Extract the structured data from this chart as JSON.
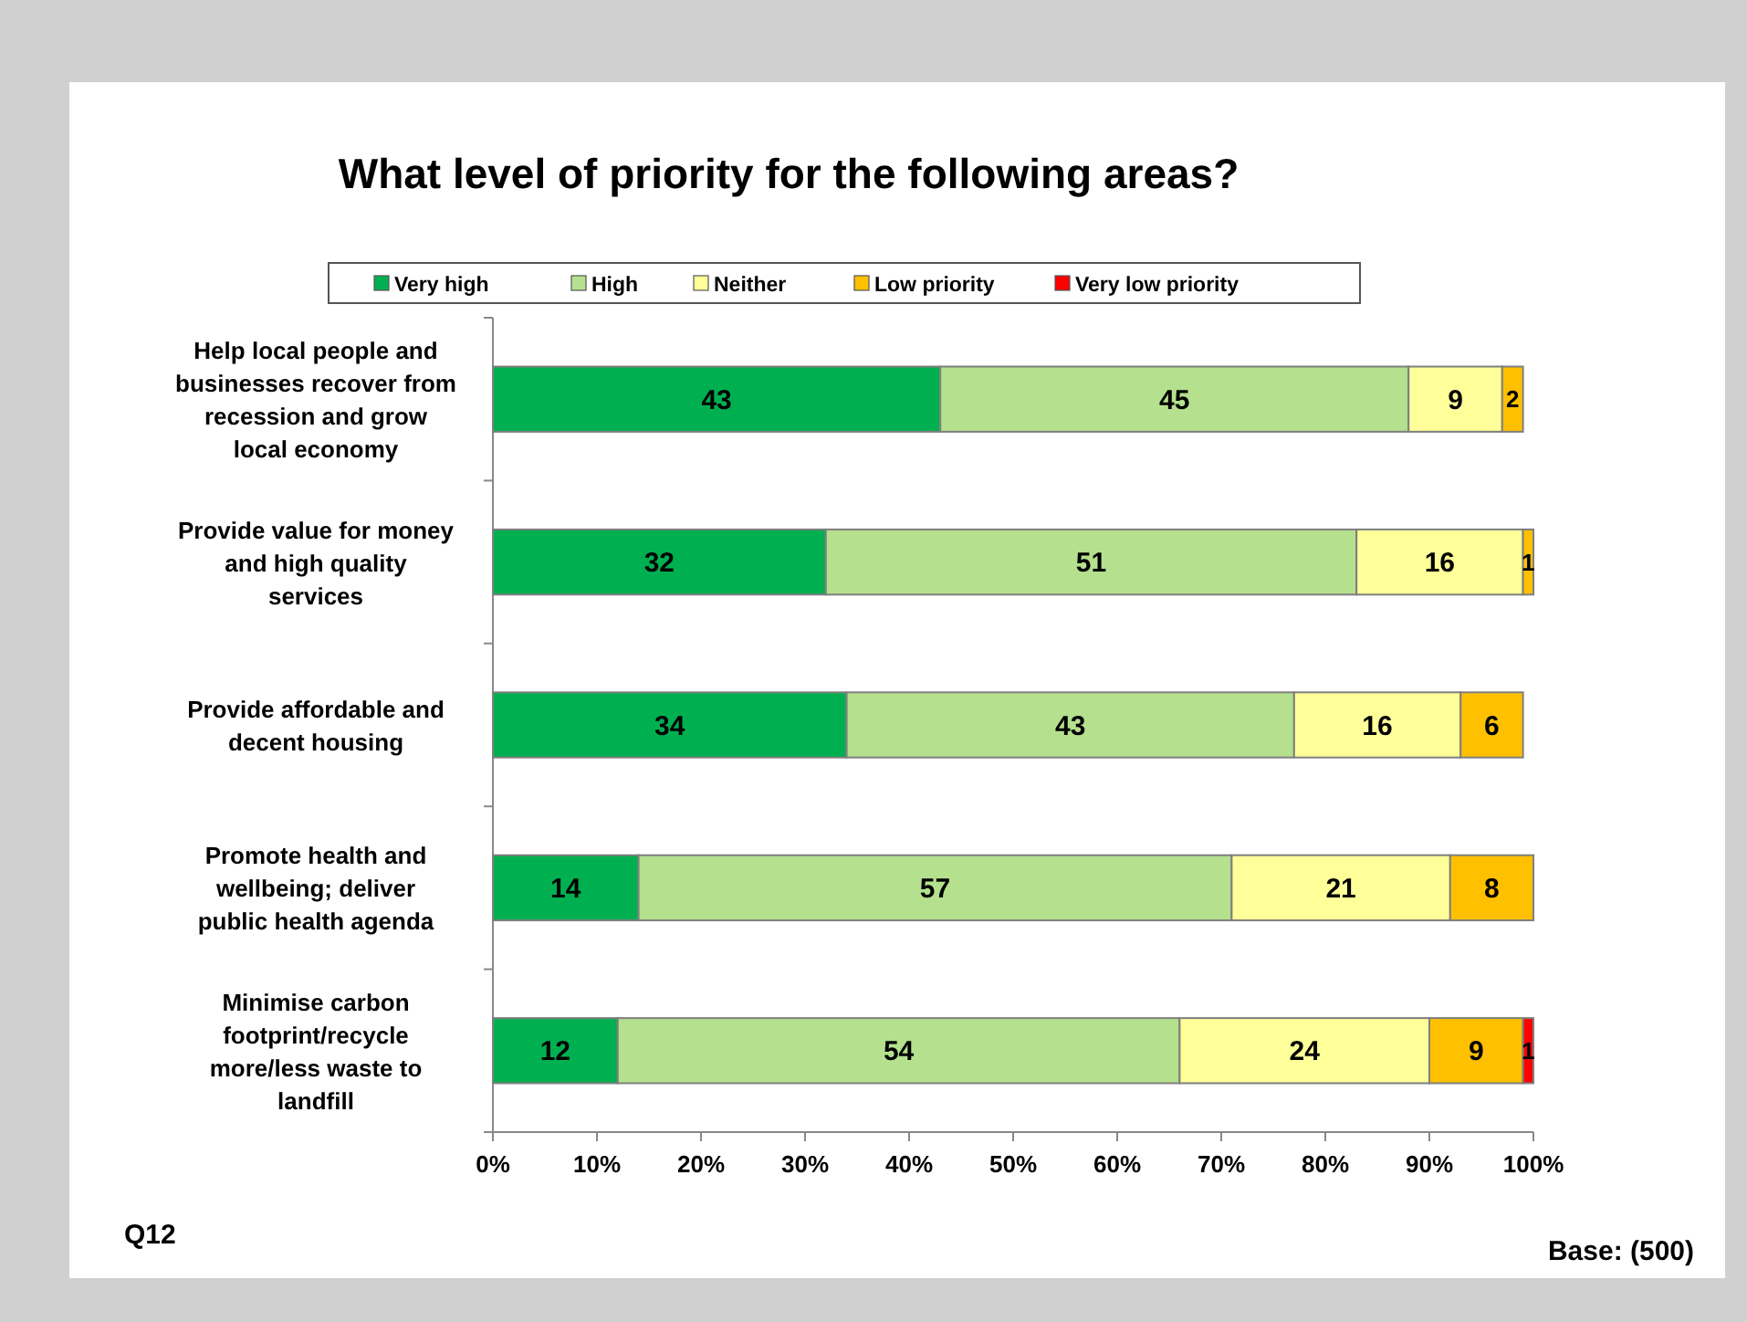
{
  "chart_data": {
    "type": "bar",
    "orientation": "horizontal",
    "stacked": true,
    "title": "What level of priority for the following areas?",
    "categories": [
      "Help local people and businesses recover from recession and grow local economy",
      "Provide value for money and high quality services",
      "Provide affordable and decent housing",
      "Promote health and wellbeing; deliver public health agenda",
      "Minimise carbon footprint/recycle more/less waste to landfill"
    ],
    "series": [
      {
        "name": "Very high",
        "color": "#00b050",
        "values": [
          43,
          32,
          34,
          14,
          12
        ]
      },
      {
        "name": "High",
        "color": "#b5e08d",
        "values": [
          45,
          51,
          43,
          57,
          54
        ]
      },
      {
        "name": "Neither",
        "color": "#ffff99",
        "values": [
          9,
          16,
          16,
          21,
          24
        ]
      },
      {
        "name": "Low priority",
        "color": "#ffc000",
        "values": [
          2,
          1,
          6,
          8,
          9
        ]
      },
      {
        "name": "Very low priority",
        "color": "#ff0000",
        "values": [
          null,
          null,
          null,
          null,
          1
        ]
      }
    ],
    "xlim": [
      0,
      100
    ],
    "xticks": [
      {
        "value": 0,
        "label": "0%"
      },
      {
        "value": 10,
        "label": "10%"
      },
      {
        "value": 20,
        "label": "20%"
      },
      {
        "value": 30,
        "label": "30%"
      },
      {
        "value": 40,
        "label": "40%"
      },
      {
        "value": 50,
        "label": "50%"
      },
      {
        "value": 60,
        "label": "60%"
      },
      {
        "value": 70,
        "label": "70%"
      },
      {
        "value": 80,
        "label": "80%"
      },
      {
        "value": 90,
        "label": "90%"
      },
      {
        "value": 100,
        "label": "100%"
      }
    ],
    "data_labels": true,
    "grid": false,
    "legend": "top",
    "annotations": [
      "Q12",
      "Base: (500)"
    ]
  }
}
